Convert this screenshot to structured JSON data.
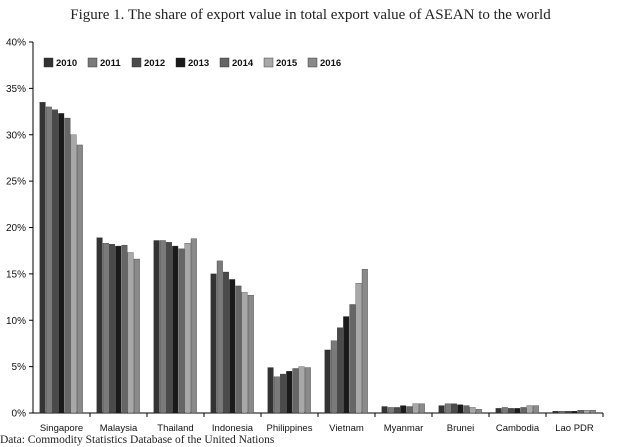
{
  "title": "Figure 1. The share of export value in total export value of ASEAN to the world",
  "source": "Data: Commodity Statistics Database of the United Nations",
  "chart_data": {
    "type": "bar",
    "title": "Figure 1. The share of export value in total export value of ASEAN to the world",
    "xlabel": "",
    "ylabel": "",
    "ylim": [
      0,
      40
    ],
    "y_ticks": [
      "0%",
      "5%",
      "10%",
      "15%",
      "20%",
      "25%",
      "30%",
      "35%",
      "40%"
    ],
    "grid": false,
    "legend_position": "top-left",
    "categories": [
      "Singapore",
      "Malaysia",
      "Thailand",
      "Indonesia",
      "Philippines",
      "Vietnam",
      "Myanmar",
      "Brunei",
      "Cambodia",
      "Lao PDR"
    ],
    "series": [
      {
        "name": "2010",
        "color": "#333333",
        "values": [
          33.5,
          18.9,
          18.6,
          15.0,
          4.9,
          6.8,
          0.7,
          0.8,
          0.5,
          0.2
        ]
      },
      {
        "name": "2011",
        "color": "#7a7a7a",
        "values": [
          33.0,
          18.3,
          18.6,
          16.4,
          3.9,
          7.8,
          0.6,
          1.0,
          0.6,
          0.2
        ]
      },
      {
        "name": "2012",
        "color": "#4a4a4a",
        "values": [
          32.7,
          18.2,
          18.4,
          15.2,
          4.2,
          9.2,
          0.6,
          1.0,
          0.5,
          0.2
        ]
      },
      {
        "name": "2013",
        "color": "#1a1a1a",
        "values": [
          32.3,
          18.0,
          18.0,
          14.4,
          4.5,
          10.4,
          0.8,
          0.9,
          0.5,
          0.2
        ]
      },
      {
        "name": "2014",
        "color": "#666666",
        "values": [
          31.8,
          18.1,
          17.7,
          13.7,
          4.8,
          11.7,
          0.7,
          0.8,
          0.6,
          0.3
        ]
      },
      {
        "name": "2015",
        "color": "#a8a8a8",
        "values": [
          30.0,
          17.3,
          18.3,
          13.0,
          5.0,
          14.0,
          1.0,
          0.6,
          0.8,
          0.3
        ]
      },
      {
        "name": "2016",
        "color": "#8a8a8a",
        "values": [
          28.9,
          16.6,
          18.8,
          12.7,
          4.9,
          15.5,
          1.0,
          0.4,
          0.8,
          0.3
        ]
      }
    ]
  }
}
